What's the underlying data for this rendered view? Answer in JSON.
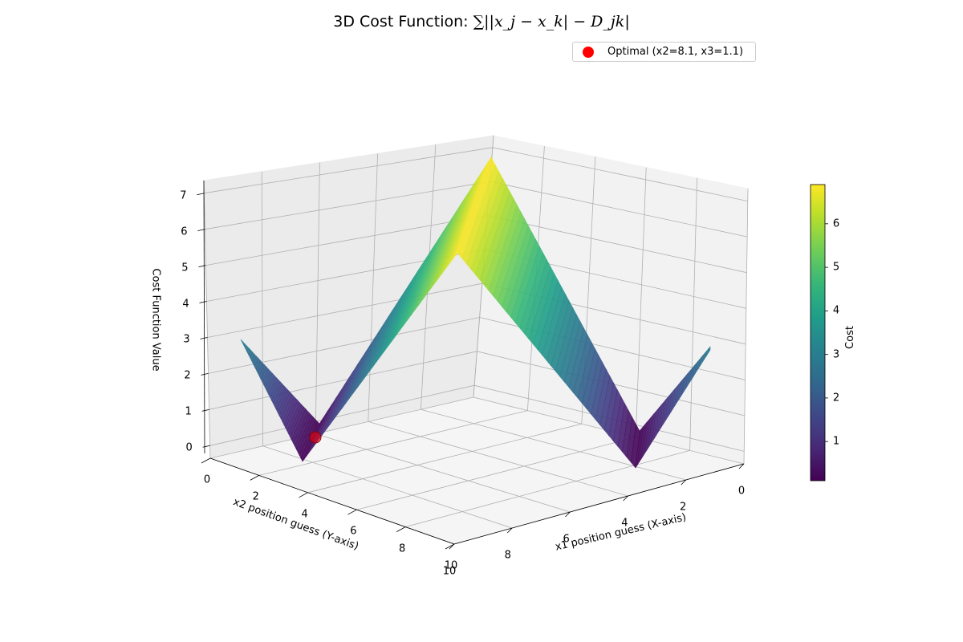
{
  "title": {
    "text": "3D Cost Function: ",
    "formula": "∑||x_j − x_k| − D_jk|"
  },
  "legend": {
    "entries": [
      {
        "label": "Optimal (x2=8.1, x3=1.1)",
        "color": "#ff0000",
        "marker": "circle"
      }
    ],
    "placement": "top-right"
  },
  "colorbar": {
    "label": "Cost",
    "ticks": [
      "1",
      "2",
      "3",
      "4",
      "5",
      "6"
    ],
    "range": [
      0.1,
      6.9
    ],
    "colormap": "viridis"
  },
  "chart_data": {
    "type": "surface",
    "title": "3D Cost Function",
    "xlabel": "x1 position guess (X-axis)",
    "ylabel": "x2 position guess (Y-axis)",
    "zlabel": "Cost Function Value",
    "x_ticks": [
      "0",
      "2",
      "4",
      "6",
      "8",
      "10"
    ],
    "y_ticks": [
      "0",
      "2",
      "4",
      "6",
      "8",
      "10"
    ],
    "z_ticks": [
      "0",
      "1",
      "2",
      "3",
      "4",
      "5",
      "6",
      "7"
    ],
    "xlim": [
      0,
      10
    ],
    "ylim": [
      0,
      10
    ],
    "zlim": [
      0,
      7
    ],
    "grid": true,
    "surface_extremes": {
      "peak_cost": 6.9,
      "minimum_cost": 0.1
    },
    "optimal_point": {
      "x2": 8.1,
      "x3": 1.1,
      "cost": 0.1
    }
  }
}
